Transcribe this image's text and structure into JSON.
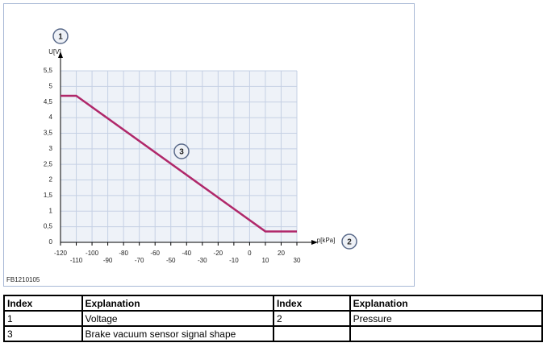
{
  "chart_data": {
    "type": "line",
    "x_label": "p[kPa]",
    "y_label": "U[V]",
    "annotations": [
      "1",
      "2",
      "3"
    ],
    "figure_id": "FB1210105",
    "x": [
      -120,
      -110,
      10,
      30
    ],
    "values": [
      4.7,
      4.7,
      0.35,
      0.35
    ],
    "color": "#b0286a",
    "xlim": [
      -120,
      30
    ],
    "xticks": [
      -120,
      -110,
      -100,
      -90,
      -80,
      -70,
      -60,
      -50,
      -40,
      -30,
      -20,
      -10,
      0,
      10,
      20,
      30
    ],
    "ylim": [
      0,
      5.5
    ],
    "yticks": [
      0,
      {
        "value": 0.5,
        "label": "0,5"
      },
      1,
      {
        "value": 1.5,
        "label": "1,5"
      },
      2,
      {
        "value": 2.5,
        "label": "2,5"
      },
      3,
      {
        "value": 3.5,
        "label": "3,5"
      },
      4,
      {
        "value": 4.5,
        "label": "4,5"
      },
      5,
      {
        "value": 5.5,
        "label": "5,5"
      }
    ],
    "grid": true
  },
  "table": {
    "header": [
      "Index",
      "Explanation",
      "Index",
      "Explanation"
    ],
    "rows": [
      [
        "1",
        "Voltage",
        "2",
        "Pressure"
      ],
      [
        "3",
        "Brake vacuum sensor signal shape"
      ]
    ]
  }
}
